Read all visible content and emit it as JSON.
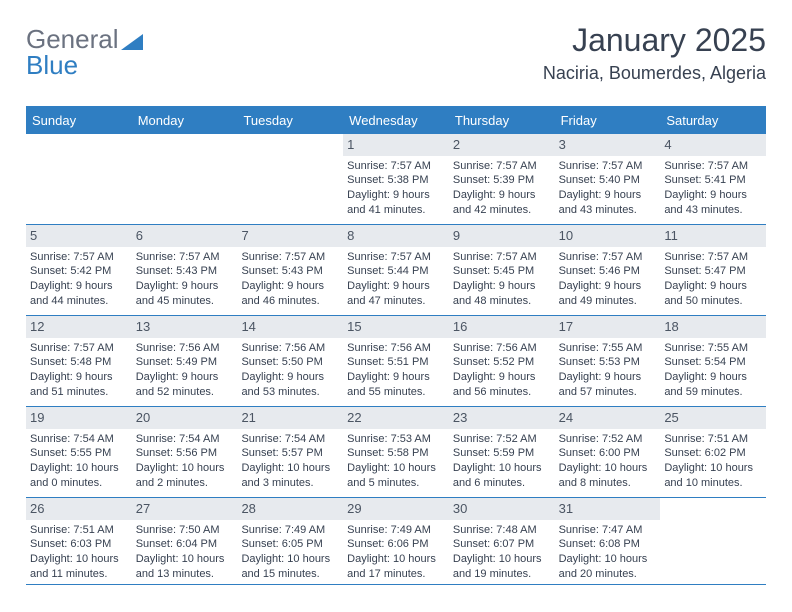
{
  "logo": {
    "textGray": "General",
    "textBlue": "Blue"
  },
  "header": {
    "month_title": "January 2025",
    "location": "Naciria, Boumerdes, Algeria"
  },
  "colors": {
    "brand_blue": "#2f7ec2",
    "daynum_bg": "#e7eaee",
    "text": "#374151",
    "logo_gray": "#6b7280"
  },
  "day_names": [
    "Sunday",
    "Monday",
    "Tuesday",
    "Wednesday",
    "Thursday",
    "Friday",
    "Saturday"
  ],
  "weeks": [
    [
      null,
      null,
      null,
      {
        "num": "1",
        "sunrise": "Sunrise: 7:57 AM",
        "sunset": "Sunset: 5:38 PM",
        "daylight1": "Daylight: 9 hours",
        "daylight2": "and 41 minutes."
      },
      {
        "num": "2",
        "sunrise": "Sunrise: 7:57 AM",
        "sunset": "Sunset: 5:39 PM",
        "daylight1": "Daylight: 9 hours",
        "daylight2": "and 42 minutes."
      },
      {
        "num": "3",
        "sunrise": "Sunrise: 7:57 AM",
        "sunset": "Sunset: 5:40 PM",
        "daylight1": "Daylight: 9 hours",
        "daylight2": "and 43 minutes."
      },
      {
        "num": "4",
        "sunrise": "Sunrise: 7:57 AM",
        "sunset": "Sunset: 5:41 PM",
        "daylight1": "Daylight: 9 hours",
        "daylight2": "and 43 minutes."
      }
    ],
    [
      {
        "num": "5",
        "sunrise": "Sunrise: 7:57 AM",
        "sunset": "Sunset: 5:42 PM",
        "daylight1": "Daylight: 9 hours",
        "daylight2": "and 44 minutes."
      },
      {
        "num": "6",
        "sunrise": "Sunrise: 7:57 AM",
        "sunset": "Sunset: 5:43 PM",
        "daylight1": "Daylight: 9 hours",
        "daylight2": "and 45 minutes."
      },
      {
        "num": "7",
        "sunrise": "Sunrise: 7:57 AM",
        "sunset": "Sunset: 5:43 PM",
        "daylight1": "Daylight: 9 hours",
        "daylight2": "and 46 minutes."
      },
      {
        "num": "8",
        "sunrise": "Sunrise: 7:57 AM",
        "sunset": "Sunset: 5:44 PM",
        "daylight1": "Daylight: 9 hours",
        "daylight2": "and 47 minutes."
      },
      {
        "num": "9",
        "sunrise": "Sunrise: 7:57 AM",
        "sunset": "Sunset: 5:45 PM",
        "daylight1": "Daylight: 9 hours",
        "daylight2": "and 48 minutes."
      },
      {
        "num": "10",
        "sunrise": "Sunrise: 7:57 AM",
        "sunset": "Sunset: 5:46 PM",
        "daylight1": "Daylight: 9 hours",
        "daylight2": "and 49 minutes."
      },
      {
        "num": "11",
        "sunrise": "Sunrise: 7:57 AM",
        "sunset": "Sunset: 5:47 PM",
        "daylight1": "Daylight: 9 hours",
        "daylight2": "and 50 minutes."
      }
    ],
    [
      {
        "num": "12",
        "sunrise": "Sunrise: 7:57 AM",
        "sunset": "Sunset: 5:48 PM",
        "daylight1": "Daylight: 9 hours",
        "daylight2": "and 51 minutes."
      },
      {
        "num": "13",
        "sunrise": "Sunrise: 7:56 AM",
        "sunset": "Sunset: 5:49 PM",
        "daylight1": "Daylight: 9 hours",
        "daylight2": "and 52 minutes."
      },
      {
        "num": "14",
        "sunrise": "Sunrise: 7:56 AM",
        "sunset": "Sunset: 5:50 PM",
        "daylight1": "Daylight: 9 hours",
        "daylight2": "and 53 minutes."
      },
      {
        "num": "15",
        "sunrise": "Sunrise: 7:56 AM",
        "sunset": "Sunset: 5:51 PM",
        "daylight1": "Daylight: 9 hours",
        "daylight2": "and 55 minutes."
      },
      {
        "num": "16",
        "sunrise": "Sunrise: 7:56 AM",
        "sunset": "Sunset: 5:52 PM",
        "daylight1": "Daylight: 9 hours",
        "daylight2": "and 56 minutes."
      },
      {
        "num": "17",
        "sunrise": "Sunrise: 7:55 AM",
        "sunset": "Sunset: 5:53 PM",
        "daylight1": "Daylight: 9 hours",
        "daylight2": "and 57 minutes."
      },
      {
        "num": "18",
        "sunrise": "Sunrise: 7:55 AM",
        "sunset": "Sunset: 5:54 PM",
        "daylight1": "Daylight: 9 hours",
        "daylight2": "and 59 minutes."
      }
    ],
    [
      {
        "num": "19",
        "sunrise": "Sunrise: 7:54 AM",
        "sunset": "Sunset: 5:55 PM",
        "daylight1": "Daylight: 10 hours",
        "daylight2": "and 0 minutes."
      },
      {
        "num": "20",
        "sunrise": "Sunrise: 7:54 AM",
        "sunset": "Sunset: 5:56 PM",
        "daylight1": "Daylight: 10 hours",
        "daylight2": "and 2 minutes."
      },
      {
        "num": "21",
        "sunrise": "Sunrise: 7:54 AM",
        "sunset": "Sunset: 5:57 PM",
        "daylight1": "Daylight: 10 hours",
        "daylight2": "and 3 minutes."
      },
      {
        "num": "22",
        "sunrise": "Sunrise: 7:53 AM",
        "sunset": "Sunset: 5:58 PM",
        "daylight1": "Daylight: 10 hours",
        "daylight2": "and 5 minutes."
      },
      {
        "num": "23",
        "sunrise": "Sunrise: 7:52 AM",
        "sunset": "Sunset: 5:59 PM",
        "daylight1": "Daylight: 10 hours",
        "daylight2": "and 6 minutes."
      },
      {
        "num": "24",
        "sunrise": "Sunrise: 7:52 AM",
        "sunset": "Sunset: 6:00 PM",
        "daylight1": "Daylight: 10 hours",
        "daylight2": "and 8 minutes."
      },
      {
        "num": "25",
        "sunrise": "Sunrise: 7:51 AM",
        "sunset": "Sunset: 6:02 PM",
        "daylight1": "Daylight: 10 hours",
        "daylight2": "and 10 minutes."
      }
    ],
    [
      {
        "num": "26",
        "sunrise": "Sunrise: 7:51 AM",
        "sunset": "Sunset: 6:03 PM",
        "daylight1": "Daylight: 10 hours",
        "daylight2": "and 11 minutes."
      },
      {
        "num": "27",
        "sunrise": "Sunrise: 7:50 AM",
        "sunset": "Sunset: 6:04 PM",
        "daylight1": "Daylight: 10 hours",
        "daylight2": "and 13 minutes."
      },
      {
        "num": "28",
        "sunrise": "Sunrise: 7:49 AM",
        "sunset": "Sunset: 6:05 PM",
        "daylight1": "Daylight: 10 hours",
        "daylight2": "and 15 minutes."
      },
      {
        "num": "29",
        "sunrise": "Sunrise: 7:49 AM",
        "sunset": "Sunset: 6:06 PM",
        "daylight1": "Daylight: 10 hours",
        "daylight2": "and 17 minutes."
      },
      {
        "num": "30",
        "sunrise": "Sunrise: 7:48 AM",
        "sunset": "Sunset: 6:07 PM",
        "daylight1": "Daylight: 10 hours",
        "daylight2": "and 19 minutes."
      },
      {
        "num": "31",
        "sunrise": "Sunrise: 7:47 AM",
        "sunset": "Sunset: 6:08 PM",
        "daylight1": "Daylight: 10 hours",
        "daylight2": "and 20 minutes."
      },
      null
    ]
  ]
}
